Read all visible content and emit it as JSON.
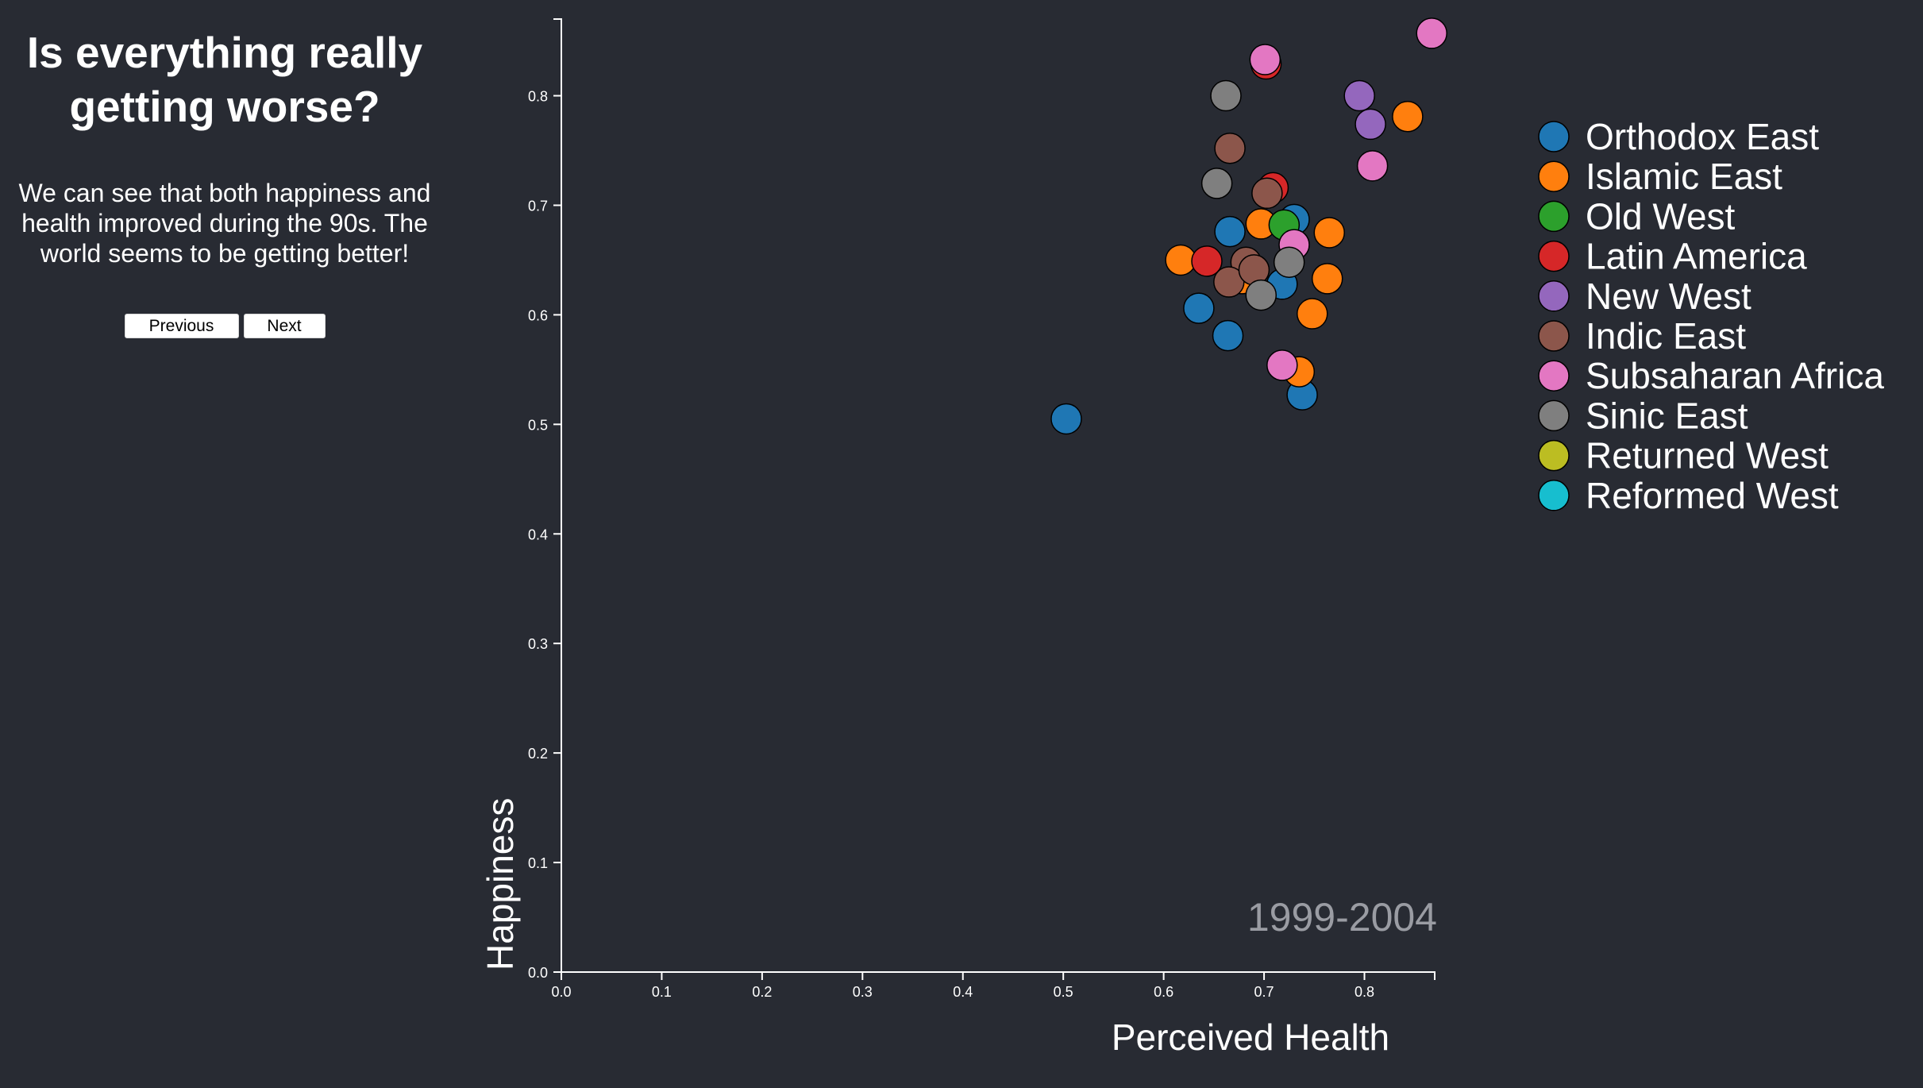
{
  "sidebar": {
    "title": "Is everything really getting worse?",
    "description": "We can see that both happiness and health improved during the 90s. The world seems to be getting better!",
    "prev_label": "Previous",
    "next_label": "Next"
  },
  "chart_data": {
    "type": "scatter",
    "xlabel": "Perceived Health",
    "ylabel": "Happiness",
    "period_label": "1999-2004",
    "xlim": [
      0,
      0.87
    ],
    "ylim": [
      0,
      0.87
    ],
    "x_ticks": [
      "0.0",
      "0.1",
      "0.2",
      "0.3",
      "0.4",
      "0.5",
      "0.6",
      "0.7",
      "0.8"
    ],
    "y_ticks": [
      "0.0",
      "0.1",
      "0.2",
      "0.3",
      "0.4",
      "0.5",
      "0.6",
      "0.7",
      "0.8"
    ],
    "legend_position": "right",
    "series": [
      {
        "name": "Orthodox East",
        "color": "#1f77b4",
        "points": [
          [
            0.503,
            0.505
          ],
          [
            0.635,
            0.606
          ],
          [
            0.664,
            0.581
          ],
          [
            0.666,
            0.676
          ],
          [
            0.718,
            0.628
          ],
          [
            0.738,
            0.527
          ],
          [
            0.73,
            0.687
          ]
        ]
      },
      {
        "name": "Islamic East",
        "color": "#ff7f0e",
        "points": [
          [
            0.617,
            0.65
          ],
          [
            0.678,
            0.633
          ],
          [
            0.697,
            0.683
          ],
          [
            0.735,
            0.548
          ],
          [
            0.748,
            0.601
          ],
          [
            0.763,
            0.633
          ],
          [
            0.765,
            0.675
          ],
          [
            0.843,
            0.781
          ]
        ]
      },
      {
        "name": "Old West",
        "color": "#2ca02c",
        "points": [
          [
            0.72,
            0.682
          ]
        ]
      },
      {
        "name": "Latin America",
        "color": "#d62728",
        "points": [
          [
            0.643,
            0.649
          ],
          [
            0.709,
            0.716
          ],
          [
            0.702,
            0.829
          ]
        ]
      },
      {
        "name": "New West",
        "color": "#9467bd",
        "points": [
          [
            0.795,
            0.8
          ],
          [
            0.806,
            0.774
          ]
        ]
      },
      {
        "name": "Indic East",
        "color": "#8c564b",
        "points": [
          [
            0.666,
            0.752
          ],
          [
            0.703,
            0.711
          ],
          [
            0.682,
            0.648
          ],
          [
            0.665,
            0.63
          ],
          [
            0.69,
            0.641
          ]
        ]
      },
      {
        "name": "Subsaharan Africa",
        "color": "#e377c2",
        "points": [
          [
            0.701,
            0.833
          ],
          [
            0.808,
            0.736
          ],
          [
            0.867,
            0.857
          ],
          [
            0.73,
            0.664
          ],
          [
            0.718,
            0.554
          ]
        ]
      },
      {
        "name": "Sinic East",
        "color": "#7f7f7f",
        "points": [
          [
            0.662,
            0.8
          ],
          [
            0.653,
            0.72
          ],
          [
            0.697,
            0.618
          ],
          [
            0.725,
            0.648
          ]
        ]
      },
      {
        "name": "Returned West",
        "color": "#bcbd22",
        "points": []
      },
      {
        "name": "Reformed West",
        "color": "#17becf",
        "points": []
      }
    ]
  }
}
